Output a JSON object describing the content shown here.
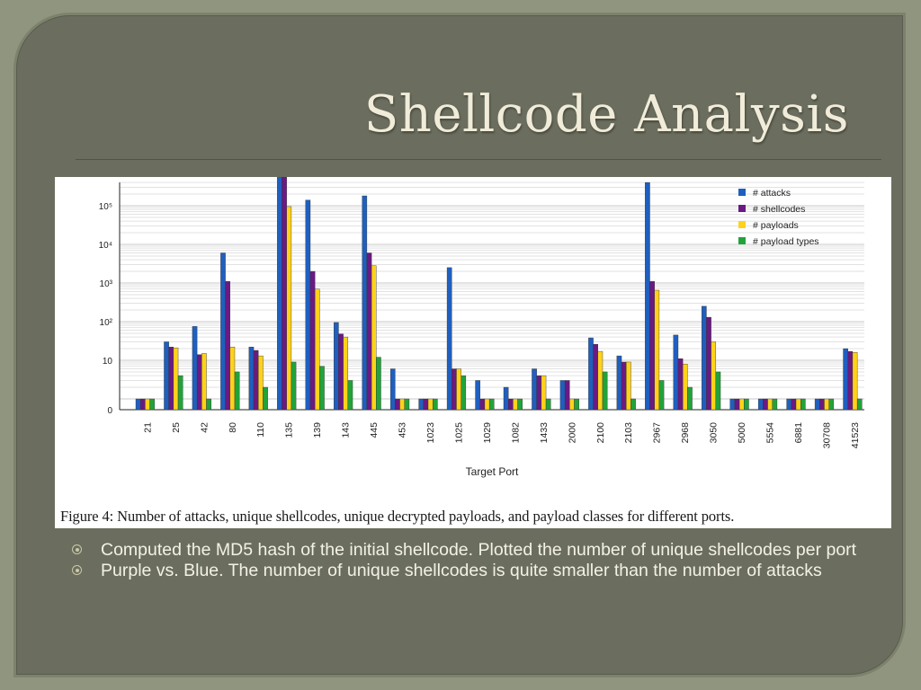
{
  "slide": {
    "title": "Shellcode Analysis",
    "caption": "Figure 4: Number of attacks, unique shellcodes, unique decrypted payloads, and payload classes for different ports.",
    "bullets": [
      "Computed the MD5 hash of the initial shellcode. Plotted the number of unique shellcodes per port",
      "Purple vs. Blue. The number of unique shellcodes is quite smaller than the number of attacks"
    ]
  },
  "chart_data": {
    "type": "bar",
    "xlabel": "Target Port",
    "ylabel": "",
    "yscale": "log",
    "ytick_labels": [
      "0",
      "10",
      "10²",
      "10³",
      "10⁴",
      "10⁵"
    ],
    "legend_position": "top-right",
    "categories": [
      "21",
      "25",
      "42",
      "80",
      "110",
      "135",
      "139",
      "143",
      "445",
      "453",
      "1023",
      "1025",
      "1029",
      "1082",
      "1433",
      "2000",
      "2100",
      "2103",
      "2967",
      "2968",
      "3050",
      "5000",
      "5554",
      "6881",
      "30708",
      "41523"
    ],
    "series": [
      {
        "name": "# attacks",
        "color": "#1f5fbf",
        "values": [
          1,
          30,
          75,
          6000,
          22,
          700000,
          140000,
          95,
          180000,
          6,
          1,
          2500,
          3,
          2,
          6,
          3,
          38,
          13,
          400000,
          45,
          250,
          1,
          1,
          1,
          1,
          20
        ]
      },
      {
        "name": "# shellcodes",
        "color": "#6a1a82",
        "values": [
          1,
          22,
          14,
          1100,
          18,
          600000,
          2000,
          48,
          6000,
          1,
          1,
          6,
          1,
          1,
          4,
          3,
          26,
          9,
          1100,
          11,
          130,
          1,
          1,
          1,
          1,
          17
        ]
      },
      {
        "name": "# payloads",
        "color": "#ffd21a",
        "values": [
          1,
          21,
          15,
          22,
          13,
          95000,
          700,
          40,
          2800,
          1,
          1,
          6,
          1,
          1,
          4,
          1,
          17,
          9,
          650,
          8,
          30,
          1,
          1,
          1,
          1,
          16
        ]
      },
      {
        "name": "# payload types",
        "color": "#22a33a",
        "values": [
          1,
          4,
          1,
          5,
          2,
          9,
          7,
          3,
          12,
          1,
          1,
          4,
          1,
          1,
          1,
          1,
          5,
          1,
          3,
          2,
          5,
          1,
          1,
          1,
          1,
          1
        ]
      }
    ]
  }
}
